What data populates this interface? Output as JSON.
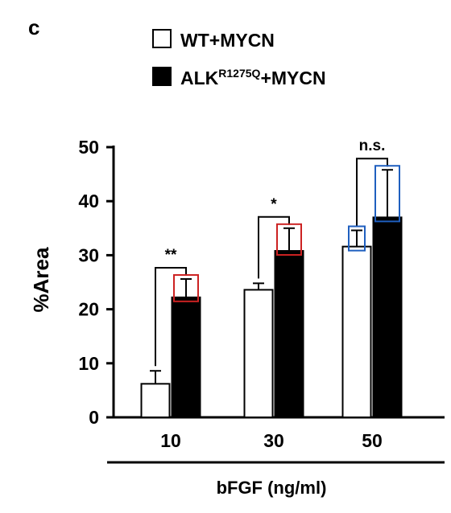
{
  "panel_label": "c",
  "chart_data": {
    "type": "bar",
    "categories": [
      "10",
      "30",
      "50"
    ],
    "series": [
      {
        "name": "WT+MYCN",
        "fill": "#ffffff",
        "values": [
          6.2,
          23.6,
          31.6
        ],
        "errors": [
          2.4,
          1.2,
          3.0
        ]
      },
      {
        "name_main": "ALK",
        "name_sup": "R1275Q",
        "name_tail": "+MYCN",
        "fill": "#000000",
        "values": [
          22.2,
          30.8,
          37.0
        ],
        "errors": [
          3.4,
          4.2,
          8.8
        ]
      }
    ],
    "xlabel": "bFGF (ng/ml)",
    "ylabel": "%Area",
    "ylim": [
      0,
      50
    ],
    "yticks": [
      "0",
      "10",
      "20",
      "30",
      "40",
      "50"
    ],
    "significance": [
      "**",
      "*",
      "n.s."
    ],
    "highlight_colors": {
      "10": "#cc2222",
      "30": "#cc2222",
      "50": "#1f5fbf"
    },
    "legend_position": "top"
  }
}
